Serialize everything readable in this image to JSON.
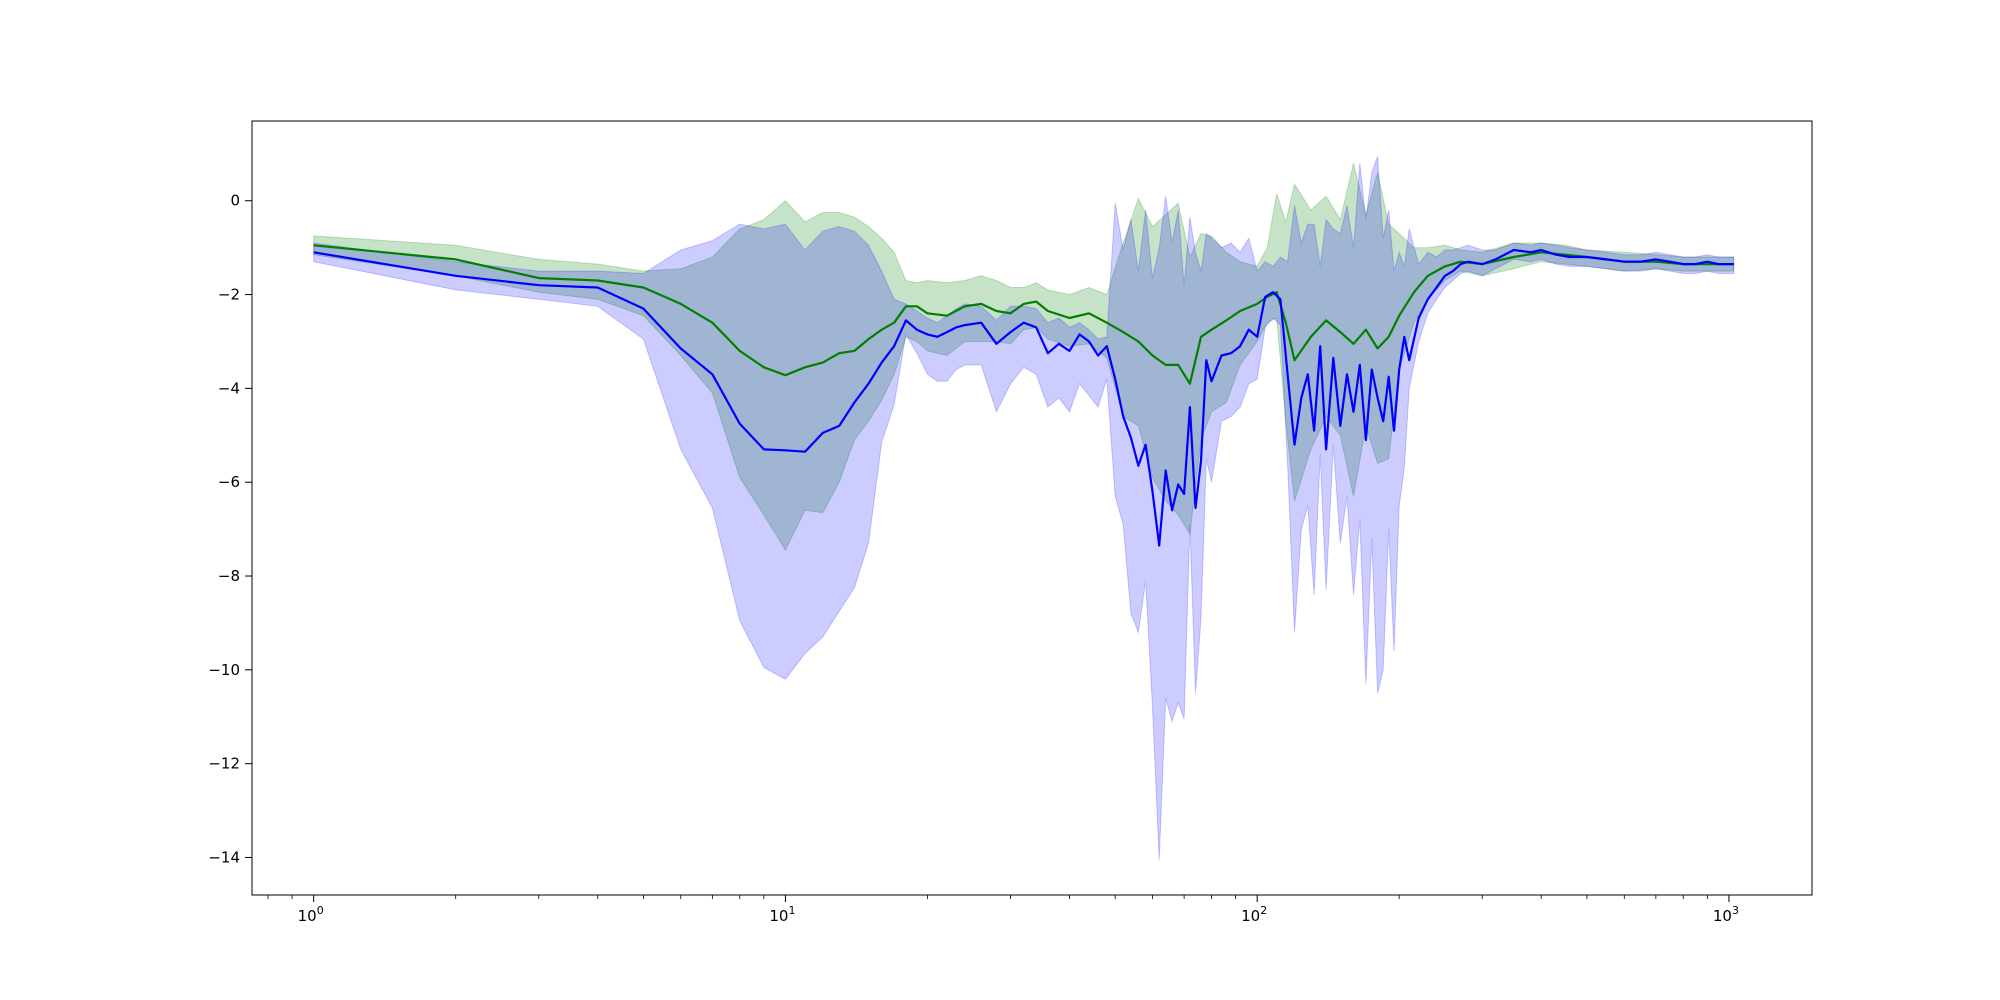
{
  "chart_data": {
    "type": "line",
    "title": "",
    "xlabel": "",
    "ylabel": "",
    "x_scale": "log",
    "xlim": [
      0.74,
      1500
    ],
    "ylim": [
      -14.8,
      1.7
    ],
    "x_ticks": [
      {
        "value": 1,
        "base": "10",
        "exp": "0"
      },
      {
        "value": 10,
        "base": "10",
        "exp": "1"
      },
      {
        "value": 100,
        "base": "10",
        "exp": "2"
      },
      {
        "value": 1000,
        "base": "10",
        "exp": "3"
      }
    ],
    "y_ticks": [
      0,
      -2,
      -4,
      -6,
      -8,
      -10,
      -12,
      -14
    ],
    "y_tick_labels": [
      "0",
      "−2",
      "−4",
      "−6",
      "−8",
      "−10",
      "−12",
      "−14"
    ],
    "grid": false,
    "legend": "none",
    "series": [
      {
        "color": "#008000",
        "band_color": "#008000",
        "band_opacity": 0.22,
        "x": [
          1,
          2,
          3,
          4,
          5,
          6,
          7,
          8,
          9,
          10,
          11,
          12,
          13,
          14,
          15,
          16,
          17,
          18,
          19,
          20,
          22,
          24,
          26,
          28,
          30,
          32,
          34,
          36,
          40,
          44,
          48,
          52,
          56,
          60,
          64,
          68,
          72,
          76,
          80,
          86,
          92,
          100,
          105,
          110,
          115,
          120,
          130,
          140,
          150,
          160,
          170,
          180,
          190,
          200,
          215,
          230,
          250,
          270,
          300,
          350,
          400,
          450,
          500,
          600,
          700,
          800,
          900,
          1024
        ],
        "y": [
          -0.95,
          -1.25,
          -1.65,
          -1.7,
          -1.85,
          -2.2,
          -2.6,
          -3.2,
          -3.55,
          -3.72,
          -3.55,
          -3.45,
          -3.25,
          -3.2,
          -2.95,
          -2.75,
          -2.6,
          -2.25,
          -2.25,
          -2.4,
          -2.45,
          -2.25,
          -2.2,
          -2.35,
          -2.4,
          -2.2,
          -2.15,
          -2.35,
          -2.5,
          -2.4,
          -2.6,
          -2.8,
          -3.0,
          -3.3,
          -3.5,
          -3.5,
          -3.9,
          -2.9,
          -2.75,
          -2.55,
          -2.35,
          -2.2,
          -2.05,
          -1.95,
          -2.6,
          -3.4,
          -2.9,
          -2.55,
          -2.8,
          -3.05,
          -2.75,
          -3.15,
          -2.9,
          -2.45,
          -1.95,
          -1.6,
          -1.4,
          -1.3,
          -1.35,
          -1.2,
          -1.1,
          -1.15,
          -1.2,
          -1.3,
          -1.3,
          -1.35,
          -1.35,
          -1.35
        ],
        "upper": [
          -0.75,
          -0.95,
          -1.25,
          -1.35,
          -1.5,
          -1.45,
          -1.2,
          -0.6,
          -0.4,
          0.0,
          -0.45,
          -0.25,
          -0.25,
          -0.35,
          -0.55,
          -0.8,
          -1.1,
          -1.7,
          -1.75,
          -1.7,
          -1.75,
          -1.7,
          -1.6,
          -1.7,
          -1.85,
          -1.85,
          -1.75,
          -1.9,
          -2.0,
          -1.85,
          -2.0,
          -0.9,
          0.05,
          -0.55,
          -0.3,
          -0.05,
          -1.2,
          -0.7,
          -0.75,
          -1.1,
          -1.3,
          -1.4,
          -1.0,
          0.15,
          -0.45,
          0.35,
          -0.2,
          0.1,
          -0.4,
          0.8,
          -0.3,
          0.6,
          -0.5,
          -0.7,
          -1.0,
          -1.0,
          -0.95,
          -1.05,
          -1.1,
          -0.9,
          -0.9,
          -0.95,
          -1.05,
          -1.1,
          -1.15,
          -1.2,
          -1.2,
          -1.2
        ],
        "lower": [
          -1.15,
          -1.6,
          -1.95,
          -2.1,
          -2.45,
          -3.3,
          -4.1,
          -5.9,
          -6.7,
          -7.45,
          -6.6,
          -6.65,
          -6.0,
          -5.1,
          -4.7,
          -4.25,
          -3.7,
          -2.9,
          -3.0,
          -3.2,
          -3.3,
          -3.0,
          -3.0,
          -3.0,
          -3.05,
          -2.75,
          -2.7,
          -2.95,
          -3.1,
          -3.05,
          -3.35,
          -4.6,
          -4.8,
          -5.9,
          -6.4,
          -6.7,
          -7.1,
          -5.1,
          -4.5,
          -4.3,
          -3.5,
          -3.0,
          -2.6,
          -2.5,
          -4.7,
          -6.4,
          -5.3,
          -4.6,
          -5.0,
          -6.3,
          -4.8,
          -5.6,
          -5.5,
          -3.6,
          -2.6,
          -2.1,
          -1.7,
          -1.5,
          -1.6,
          -1.45,
          -1.3,
          -1.35,
          -1.4,
          -1.5,
          -1.45,
          -1.5,
          -1.5,
          -1.5
        ]
      },
      {
        "color": "#0000ff",
        "band_color": "#0000ff",
        "band_opacity": 0.2,
        "x": [
          1,
          2,
          3,
          4,
          5,
          6,
          7,
          8,
          9,
          10,
          11,
          12,
          13,
          14,
          15,
          16,
          17,
          18,
          19,
          20,
          21,
          22,
          23,
          24,
          26,
          28,
          30,
          32,
          34,
          36,
          38,
          40,
          42,
          44,
          46,
          48,
          50,
          52,
          54,
          56,
          58,
          60,
          62,
          64,
          66,
          68,
          70,
          72,
          74,
          76,
          78,
          80,
          84,
          88,
          92,
          96,
          100,
          104,
          108,
          112,
          116,
          120,
          124,
          128,
          132,
          136,
          140,
          145,
          150,
          155,
          160,
          165,
          170,
          175,
          180,
          185,
          190,
          195,
          200,
          205,
          210,
          220,
          230,
          240,
          250,
          260,
          270,
          280,
          300,
          320,
          350,
          380,
          400,
          430,
          460,
          500,
          550,
          600,
          650,
          700,
          750,
          800,
          850,
          900,
          950,
          1024
        ],
        "y": [
          -1.1,
          -1.6,
          -1.8,
          -1.85,
          -2.3,
          -3.15,
          -3.7,
          -4.75,
          -5.3,
          -5.32,
          -5.35,
          -4.95,
          -4.8,
          -4.3,
          -3.9,
          -3.45,
          -3.1,
          -2.55,
          -2.75,
          -2.85,
          -2.9,
          -2.8,
          -2.7,
          -2.65,
          -2.6,
          -3.05,
          -2.8,
          -2.6,
          -2.7,
          -3.25,
          -3.05,
          -3.2,
          -2.85,
          -3.0,
          -3.3,
          -3.1,
          -3.8,
          -4.6,
          -5.05,
          -5.65,
          -5.2,
          -6.2,
          -7.35,
          -5.75,
          -6.6,
          -6.05,
          -6.25,
          -4.4,
          -6.55,
          -5.55,
          -3.4,
          -3.85,
          -3.3,
          -3.25,
          -3.1,
          -2.75,
          -2.9,
          -2.05,
          -1.95,
          -2.1,
          -3.7,
          -5.2,
          -4.2,
          -3.7,
          -4.9,
          -3.1,
          -5.3,
          -3.35,
          -4.8,
          -3.7,
          -4.5,
          -3.5,
          -5.1,
          -3.6,
          -4.2,
          -4.7,
          -3.75,
          -4.9,
          -3.6,
          -2.9,
          -3.4,
          -2.5,
          -2.1,
          -1.85,
          -1.6,
          -1.5,
          -1.35,
          -1.3,
          -1.35,
          -1.25,
          -1.05,
          -1.1,
          -1.05,
          -1.15,
          -1.2,
          -1.2,
          -1.25,
          -1.3,
          -1.3,
          -1.25,
          -1.3,
          -1.35,
          -1.35,
          -1.3,
          -1.35,
          -1.35
        ],
        "upper": [
          -0.9,
          -1.3,
          -1.5,
          -1.5,
          -1.55,
          -1.05,
          -0.85,
          -0.5,
          -0.6,
          -0.5,
          -1.05,
          -0.65,
          -0.55,
          -0.65,
          -0.95,
          -1.5,
          -2.1,
          -2.2,
          -2.35,
          -2.5,
          -2.6,
          -2.45,
          -2.3,
          -2.2,
          -2.25,
          -2.55,
          -2.25,
          -2.25,
          -2.3,
          -2.6,
          -2.5,
          -2.7,
          -2.6,
          -2.75,
          -2.95,
          -2.9,
          -0.05,
          -1.05,
          -0.4,
          -1.5,
          -0.2,
          -1.65,
          -1.0,
          0.1,
          -0.9,
          -0.2,
          -1.8,
          -0.35,
          -1.1,
          -1.5,
          -0.7,
          -0.8,
          -1.0,
          -0.9,
          -1.1,
          -0.8,
          -1.5,
          -1.3,
          -1.4,
          -1.2,
          -1.3,
          -0.1,
          -0.9,
          -0.5,
          -0.5,
          -1.4,
          -0.4,
          -0.6,
          -0.7,
          -0.1,
          -1.0,
          0.8,
          -0.4,
          0.6,
          0.95,
          -0.8,
          -0.2,
          -1.5,
          -1.1,
          -1.4,
          -0.6,
          -1.35,
          -1.1,
          -1.2,
          -1.05,
          -1.05,
          -1.0,
          -0.95,
          -1.05,
          -1.05,
          -0.9,
          -0.95,
          -0.9,
          -0.95,
          -1.0,
          -1.05,
          -1.1,
          -1.15,
          -1.15,
          -1.1,
          -1.15,
          -1.2,
          -1.2,
          -1.15,
          -1.2,
          -1.2
        ],
        "lower": [
          -1.3,
          -1.9,
          -2.1,
          -2.25,
          -2.95,
          -5.3,
          -6.55,
          -8.95,
          -9.95,
          -10.2,
          -9.65,
          -9.3,
          -8.75,
          -8.25,
          -7.3,
          -5.15,
          -4.35,
          -2.85,
          -3.25,
          -3.7,
          -3.85,
          -3.85,
          -3.6,
          -3.5,
          -3.5,
          -4.5,
          -3.9,
          -3.55,
          -3.7,
          -4.4,
          -4.2,
          -4.5,
          -3.9,
          -4.15,
          -4.4,
          -3.8,
          -6.3,
          -6.9,
          -8.8,
          -9.2,
          -8.1,
          -10.8,
          -14.05,
          -10.6,
          -11.1,
          -10.7,
          -11.05,
          -6.9,
          -10.5,
          -8.9,
          -5.5,
          -6.0,
          -4.7,
          -4.6,
          -4.4,
          -3.9,
          -3.8,
          -2.7,
          -2.5,
          -2.65,
          -5.6,
          -9.2,
          -7.0,
          -6.5,
          -8.4,
          -5.4,
          -8.3,
          -5.2,
          -7.3,
          -6.3,
          -8.4,
          -6.8,
          -10.3,
          -7.2,
          -10.5,
          -10.0,
          -7.0,
          -9.6,
          -6.5,
          -5.7,
          -4.0,
          -3.0,
          -2.4,
          -2.1,
          -1.85,
          -1.7,
          -1.55,
          -1.5,
          -1.6,
          -1.45,
          -1.25,
          -1.3,
          -1.25,
          -1.35,
          -1.4,
          -1.4,
          -1.45,
          -1.5,
          -1.5,
          -1.45,
          -1.5,
          -1.55,
          -1.55,
          -1.5,
          -1.55,
          -1.55
        ]
      }
    ]
  }
}
